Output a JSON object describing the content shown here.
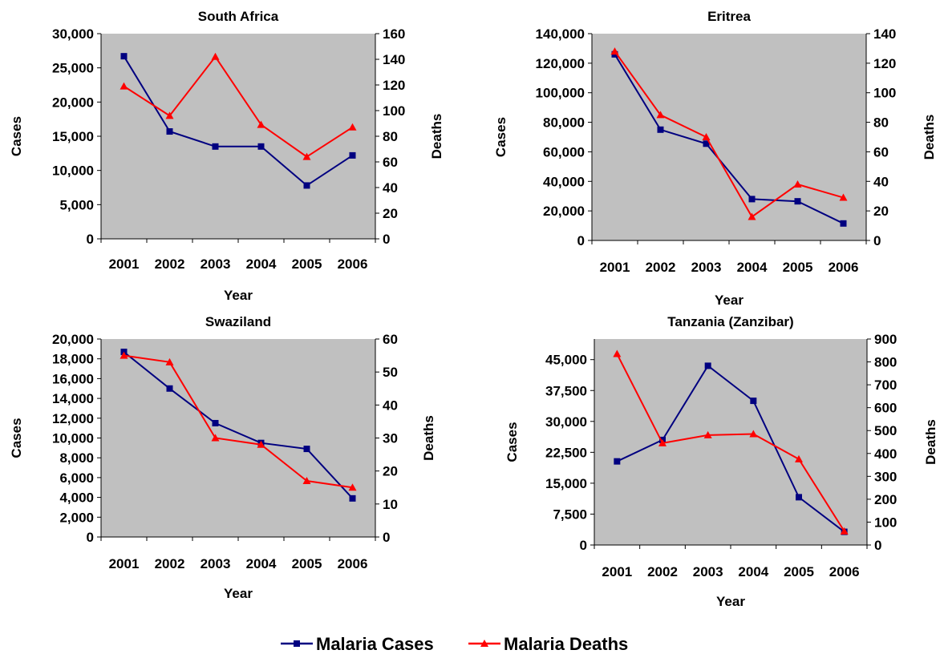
{
  "legend": {
    "cases_label": "Malaria Cases",
    "deaths_label": "Malaria Deaths"
  },
  "colors": {
    "cases": "#000080",
    "deaths": "#ff0000",
    "plot_bg": "#c0c0c0"
  },
  "chart_data": [
    {
      "type": "line",
      "title": "South Africa",
      "xlabel": "Year",
      "ylabel": "Cases",
      "y2label": "Deaths",
      "categories": [
        "2001",
        "2002",
        "2003",
        "2004",
        "2005",
        "2006"
      ],
      "ylim": [
        0,
        30000
      ],
      "yticks": [
        0,
        5000,
        10000,
        15000,
        20000,
        25000,
        30000
      ],
      "ytick_labels": [
        "0",
        "5,000",
        "10,000",
        "15,000",
        "20,000",
        "25,000",
        "30,000"
      ],
      "y2lim": [
        0,
        160
      ],
      "y2ticks": [
        0,
        20,
        40,
        60,
        80,
        100,
        120,
        140,
        160
      ],
      "y2tick_labels": [
        "0",
        "20",
        "40",
        "60",
        "80",
        "100",
        "120",
        "140",
        "160"
      ],
      "series": [
        {
          "name": "Malaria Cases",
          "axis": "left",
          "marker": "square",
          "values": [
            26700,
            15700,
            13500,
            13500,
            7800,
            12200
          ]
        },
        {
          "name": "Malaria Deaths",
          "axis": "right",
          "marker": "triangle",
          "values": [
            119,
            96,
            142,
            89,
            64,
            87
          ]
        }
      ],
      "grid": false,
      "legend": "bottom"
    },
    {
      "type": "line",
      "title": "Eritrea",
      "xlabel": "Year",
      "ylabel": "Cases",
      "y2label": "Deaths",
      "categories": [
        "2001",
        "2002",
        "2003",
        "2004",
        "2005",
        "2006"
      ],
      "ylim": [
        0,
        140000
      ],
      "yticks": [
        0,
        20000,
        40000,
        60000,
        80000,
        100000,
        120000,
        140000
      ],
      "ytick_labels": [
        "0",
        "20,000",
        "40,000",
        "60,000",
        "80,000",
        "100,000",
        "120,000",
        "140,000"
      ],
      "y2lim": [
        0,
        140
      ],
      "y2ticks": [
        0,
        20,
        40,
        60,
        80,
        100,
        120,
        140
      ],
      "y2tick_labels": [
        "0",
        "20",
        "40",
        "60",
        "80",
        "100",
        "120",
        "140"
      ],
      "series": [
        {
          "name": "Malaria Cases",
          "axis": "left",
          "marker": "square",
          "values": [
            126000,
            75000,
            65500,
            28000,
            26500,
            11500
          ]
        },
        {
          "name": "Malaria Deaths",
          "axis": "right",
          "marker": "triangle",
          "values": [
            128,
            85,
            70,
            16,
            38,
            29
          ]
        }
      ],
      "grid": false,
      "legend": "bottom"
    },
    {
      "type": "line",
      "title": "Swaziland",
      "xlabel": "Year",
      "ylabel": "Cases",
      "y2label": "Deaths",
      "categories": [
        "2001",
        "2002",
        "2003",
        "2004",
        "2005",
        "2006"
      ],
      "ylim": [
        0,
        20000
      ],
      "yticks": [
        0,
        2000,
        4000,
        6000,
        8000,
        10000,
        12000,
        14000,
        16000,
        18000,
        20000
      ],
      "ytick_labels": [
        "0",
        "2,000",
        "4,000",
        "6,000",
        "8,000",
        "10,000",
        "12,000",
        "14,000",
        "16,000",
        "18,000",
        "20,000"
      ],
      "y2lim": [
        0,
        60
      ],
      "y2ticks": [
        0,
        10,
        20,
        30,
        40,
        50,
        60
      ],
      "y2tick_labels": [
        "0",
        "10",
        "20",
        "30",
        "40",
        "50",
        "60"
      ],
      "series": [
        {
          "name": "Malaria Cases",
          "axis": "left",
          "marker": "square",
          "values": [
            18700,
            15000,
            11500,
            9500,
            8900,
            3900
          ]
        },
        {
          "name": "Malaria Deaths",
          "axis": "right",
          "marker": "triangle",
          "values": [
            55,
            53,
            30,
            28,
            17,
            15
          ]
        }
      ],
      "grid": false,
      "legend": "bottom"
    },
    {
      "type": "line",
      "title": "Tanzania (Zanzibar)",
      "xlabel": "Year",
      "ylabel": "Cases",
      "y2label": "Deaths",
      "categories": [
        "2001",
        "2002",
        "2003",
        "2004",
        "2005",
        "2006"
      ],
      "ylim": [
        0,
        50000
      ],
      "yticks": [
        0,
        7500,
        15000,
        22500,
        30000,
        37500,
        45000
      ],
      "ytick_labels": [
        "0",
        "7,500",
        "15,000",
        "22,500",
        "30,000",
        "37,500",
        "45,000"
      ],
      "y2lim": [
        0,
        900
      ],
      "y2ticks": [
        0,
        100,
        200,
        300,
        400,
        500,
        600,
        700,
        800,
        900
      ],
      "y2tick_labels": [
        "0",
        "100",
        "200",
        "300",
        "400",
        "500",
        "600",
        "700",
        "800",
        "900"
      ],
      "series": [
        {
          "name": "Malaria Cases",
          "axis": "left",
          "marker": "square",
          "values": [
            20300,
            25500,
            43500,
            35000,
            11600,
            3200
          ]
        },
        {
          "name": "Malaria Deaths",
          "axis": "right",
          "marker": "triangle",
          "values": [
            835,
            445,
            480,
            485,
            375,
            60
          ]
        }
      ],
      "grid": false,
      "legend": "bottom"
    }
  ]
}
